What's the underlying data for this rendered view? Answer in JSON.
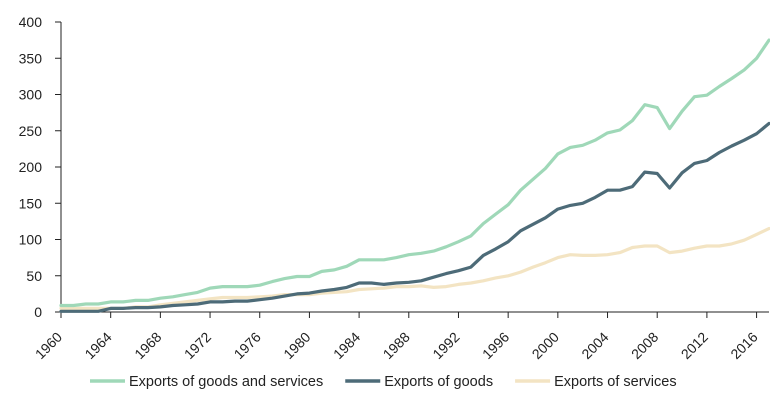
{
  "chart_data": {
    "type": "line",
    "title": "",
    "xlabel": "",
    "ylabel": "",
    "x": [
      1960,
      1961,
      1962,
      1963,
      1964,
      1965,
      1966,
      1967,
      1968,
      1969,
      1970,
      1971,
      1972,
      1973,
      1974,
      1975,
      1976,
      1977,
      1978,
      1979,
      1980,
      1981,
      1982,
      1983,
      1984,
      1985,
      1986,
      1987,
      1988,
      1989,
      1990,
      1991,
      1992,
      1993,
      1994,
      1995,
      1996,
      1997,
      1998,
      1999,
      2000,
      2001,
      2002,
      2003,
      2004,
      2005,
      2006,
      2007,
      2008,
      2009,
      2010,
      2011,
      2012,
      2013,
      2014,
      2015,
      2016,
      2017
    ],
    "ylim": [
      0,
      400
    ],
    "xlim": [
      1960,
      2017
    ],
    "y_ticks": [
      "0",
      "50",
      "100",
      "150",
      "200",
      "250",
      "300",
      "350",
      "400"
    ],
    "x_ticks": [
      "1960",
      "1964",
      "1968",
      "1972",
      "1976",
      "1980",
      "1984",
      "1988",
      "1992",
      "1996",
      "2000",
      "2004",
      "2008",
      "2012",
      "2016"
    ],
    "grid": false,
    "legend_position": "bottom",
    "series": [
      {
        "name": "Exports of goods and services",
        "color": "#9fd8b8",
        "values": [
          9,
          9,
          11,
          11,
          14,
          14,
          16,
          16,
          19,
          21,
          24,
          27,
          33,
          35,
          35,
          35,
          37,
          42,
          46,
          49,
          49,
          56,
          58,
          63,
          72,
          72,
          72,
          75,
          79,
          81,
          84,
          90,
          97,
          105,
          122,
          135,
          148,
          168,
          183,
          198,
          218,
          227,
          230,
          237,
          247,
          251,
          264,
          286,
          282,
          253,
          277,
          297,
          299,
          311,
          322,
          334,
          350,
          375
        ]
      },
      {
        "name": "Exports of goods",
        "color": "#4d6b78",
        "values": [
          1,
          1,
          1,
          1,
          5,
          5,
          6,
          6,
          7,
          9,
          10,
          11,
          14,
          14,
          15,
          15,
          17,
          19,
          22,
          25,
          26,
          29,
          31,
          34,
          40,
          40,
          38,
          40,
          41,
          43,
          48,
          53,
          57,
          62,
          78,
          87,
          97,
          112,
          121,
          130,
          142,
          147,
          150,
          158,
          168,
          168,
          173,
          193,
          191,
          171,
          192,
          205,
          209,
          220,
          229,
          237,
          246,
          260
        ]
      },
      {
        "name": "Exports of services",
        "color": "#f3e4c3",
        "values": [
          5,
          5,
          5,
          5,
          5,
          5,
          7,
          7,
          10,
          12,
          14,
          16,
          18,
          20,
          20,
          20,
          21,
          22,
          24,
          24,
          24,
          26,
          27,
          28,
          31,
          32,
          33,
          35,
          35,
          36,
          34,
          35,
          38,
          40,
          43,
          47,
          50,
          55,
          62,
          68,
          75,
          79,
          78,
          78,
          79,
          82,
          89,
          91,
          91,
          82,
          84,
          88,
          91,
          91,
          94,
          99,
          107,
          115
        ]
      }
    ]
  }
}
